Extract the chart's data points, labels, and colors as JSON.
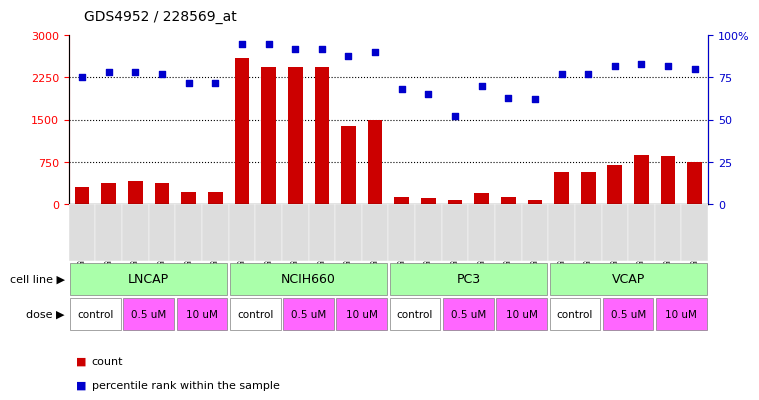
{
  "title": "GDS4952 / 228569_at",
  "samples": [
    "GSM1359772",
    "GSM1359773",
    "GSM1359774",
    "GSM1359775",
    "GSM1359776",
    "GSM1359777",
    "GSM1359760",
    "GSM1359761",
    "GSM1359762",
    "GSM1359763",
    "GSM1359764",
    "GSM1359765",
    "GSM1359778",
    "GSM1359779",
    "GSM1359780",
    "GSM1359781",
    "GSM1359782",
    "GSM1359783",
    "GSM1359766",
    "GSM1359767",
    "GSM1359768",
    "GSM1359769",
    "GSM1359770",
    "GSM1359771"
  ],
  "counts": [
    310,
    370,
    420,
    370,
    210,
    220,
    2600,
    2430,
    2440,
    2440,
    1380,
    1500,
    130,
    110,
    70,
    200,
    130,
    80,
    580,
    580,
    700,
    870,
    850,
    750
  ],
  "percentiles": [
    75,
    78,
    78,
    77,
    72,
    72,
    95,
    95,
    92,
    92,
    88,
    90,
    68,
    65,
    52,
    70,
    63,
    62,
    77,
    77,
    82,
    83,
    82,
    80
  ],
  "cell_lines": [
    "LNCAP",
    "NCIH660",
    "PC3",
    "VCAP"
  ],
  "cell_line_spans": [
    [
      0,
      6
    ],
    [
      6,
      12
    ],
    [
      12,
      18
    ],
    [
      18,
      24
    ]
  ],
  "dose_labels": [
    "control",
    "0.5 uM",
    "10 uM"
  ],
  "dose_colors": [
    "#ffffff",
    "#ff66ff",
    "#ff66ff"
  ],
  "cell_line_color": "#aaffaa",
  "bar_color": "#cc0000",
  "dot_color": "#0000cc",
  "left_ylim": [
    0,
    3000
  ],
  "right_ylim": [
    0,
    100
  ],
  "left_yticks": [
    0,
    750,
    1500,
    2250,
    3000
  ],
  "right_yticks": [
    0,
    25,
    50,
    75,
    100
  ],
  "grid_lines": [
    750,
    1500,
    2250
  ],
  "figsize": [
    7.61,
    3.93
  ],
  "dpi": 100
}
